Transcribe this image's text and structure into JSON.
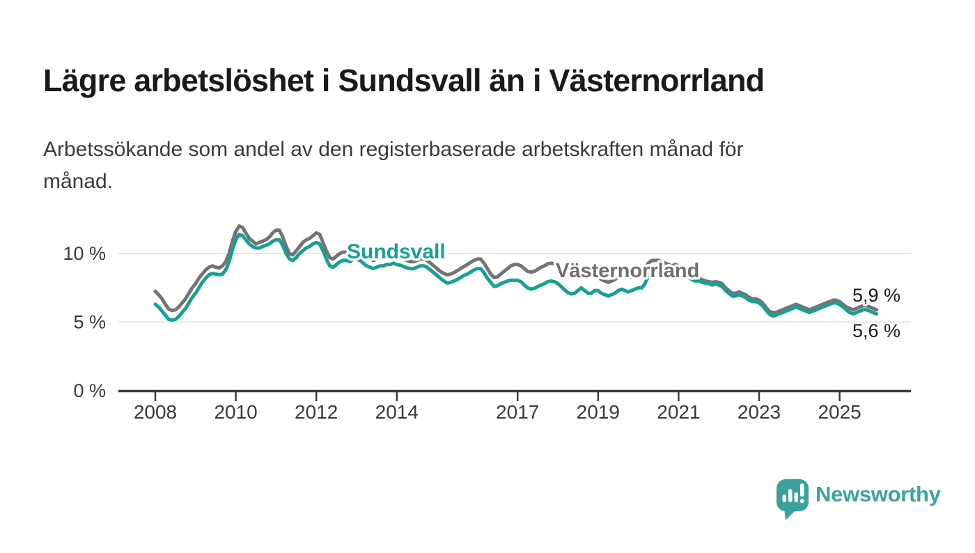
{
  "header": {
    "title": "Lägre arbetslöshet i Sundsvall än i Västernorrland",
    "subtitle": "Arbetssökande som andel av den registerbaserade arbetskraften månad för månad.",
    "subtitle_line1": "Arbetssökande som andel av den registerbaserade arbetskraften månad för",
    "subtitle_line2": "månad."
  },
  "footer": {
    "brand": "Newsworthy"
  },
  "colors": {
    "sundsvall_teal": "#18A091",
    "vasternorrland_gray": "#747474",
    "vasternorrland_label_gray": "#6F6F6F",
    "grid": "#E4E4E4",
    "axis": "#3C3C3C",
    "tick_text": "#3A3A3A",
    "title_text": "#1A1A18",
    "brand_teal": "#3AA49E",
    "logo_bubble_teal": "#3BA29B",
    "background": "#FFFFFF"
  },
  "chart_data": {
    "type": "line",
    "title": "Lägre arbetslöshet i Sundsvall än i Västernorrland",
    "subtitle": "Arbetssökande som andel av den registerbaserade arbetskraften månad för månad.",
    "x_unit": "month",
    "x_start": "2008-01",
    "x_end": "2025-12",
    "x_ticks": [
      2008,
      2010,
      2012,
      2014,
      2017,
      2019,
      2021,
      2023,
      2025
    ],
    "y_ticks": [
      {
        "value": 10,
        "label": "10 %"
      },
      {
        "value": 5,
        "label": "5 %"
      },
      {
        "value": 0,
        "label": "0 %"
      }
    ],
    "ylim": [
      0,
      13.2
    ],
    "grid": true,
    "legend": "inline-labels",
    "series": [
      {
        "id": "vasternorrland",
        "name": "Västernorrland",
        "color": "#747474",
        "end_label": "5,9 %",
        "end_value": 5.9,
        "values": [
          7.25,
          7.0,
          6.7,
          6.3,
          5.95,
          5.85,
          5.9,
          6.1,
          6.4,
          6.7,
          7.1,
          7.5,
          7.8,
          8.2,
          8.5,
          8.8,
          9.0,
          9.1,
          9.0,
          8.95,
          9.1,
          9.4,
          10.0,
          10.9,
          11.6,
          12.0,
          11.9,
          11.5,
          11.1,
          10.9,
          10.7,
          10.8,
          10.9,
          11.0,
          11.2,
          11.5,
          11.7,
          11.7,
          11.2,
          10.5,
          10.0,
          9.9,
          10.2,
          10.5,
          10.8,
          11.0,
          11.1,
          11.3,
          11.5,
          11.4,
          10.8,
          10.2,
          9.7,
          9.6,
          9.8,
          10.0,
          10.1,
          10.1,
          10.0,
          10.2,
          10.1,
          10.0,
          9.8,
          9.7,
          9.6,
          9.5,
          9.6,
          9.7,
          9.7,
          9.8,
          9.8,
          9.8,
          9.8,
          9.7,
          9.6,
          9.5,
          9.4,
          9.4,
          9.5,
          9.6,
          9.6,
          9.5,
          9.3,
          9.1,
          8.9,
          8.7,
          8.55,
          8.45,
          8.5,
          8.6,
          8.75,
          8.9,
          9.05,
          9.2,
          9.35,
          9.5,
          9.6,
          9.6,
          9.3,
          8.9,
          8.5,
          8.25,
          8.3,
          8.5,
          8.7,
          8.9,
          9.1,
          9.2,
          9.2,
          9.1,
          8.9,
          8.7,
          8.65,
          8.7,
          8.85,
          9.0,
          9.1,
          9.25,
          9.3,
          9.25,
          9.1,
          8.9,
          8.7,
          8.5,
          8.4,
          8.4,
          8.6,
          8.7,
          8.5,
          8.4,
          8.4,
          8.5,
          8.3,
          8.1,
          8.0,
          7.9,
          8.0,
          8.1,
          8.3,
          8.4,
          8.3,
          8.25,
          8.3,
          8.5,
          8.6,
          8.6,
          8.9,
          9.3,
          9.5,
          9.5,
          9.5,
          9.4,
          9.3,
          9.2,
          9.1,
          9.2,
          9.1,
          9.0,
          8.8,
          8.6,
          8.4,
          8.3,
          8.2,
          8.1,
          8.0,
          7.95,
          7.9,
          7.95,
          7.9,
          7.8,
          7.5,
          7.3,
          7.1,
          7.1,
          7.2,
          7.1,
          7.0,
          6.8,
          6.7,
          6.7,
          6.6,
          6.4,
          6.1,
          5.8,
          5.7,
          5.7,
          5.8,
          5.9,
          6.0,
          6.1,
          6.2,
          6.3,
          6.2,
          6.1,
          6.0,
          5.9,
          6.0,
          6.1,
          6.2,
          6.3,
          6.4,
          6.5,
          6.6,
          6.6,
          6.5,
          6.3,
          6.1,
          6.0,
          5.9,
          6.0,
          6.1,
          6.2,
          6.2,
          6.1,
          6.0,
          5.9
        ]
      },
      {
        "id": "sundsvall",
        "name": "Sundsvall",
        "color": "#18A091",
        "end_label": "5,6 %",
        "end_value": 5.6,
        "values": [
          6.3,
          6.1,
          5.8,
          5.5,
          5.2,
          5.15,
          5.2,
          5.4,
          5.7,
          6.0,
          6.4,
          6.8,
          7.1,
          7.5,
          7.9,
          8.2,
          8.45,
          8.55,
          8.5,
          8.45,
          8.5,
          8.8,
          9.4,
          10.3,
          11.0,
          11.4,
          11.3,
          11.0,
          10.7,
          10.5,
          10.4,
          10.4,
          10.5,
          10.6,
          10.7,
          10.9,
          11.0,
          11.0,
          10.6,
          10.0,
          9.6,
          9.5,
          9.7,
          10.0,
          10.2,
          10.4,
          10.5,
          10.7,
          10.8,
          10.7,
          10.2,
          9.6,
          9.1,
          9.0,
          9.2,
          9.4,
          9.5,
          9.5,
          9.4,
          9.6,
          9.6,
          9.5,
          9.3,
          9.1,
          9.0,
          8.9,
          9.0,
          9.1,
          9.1,
          9.2,
          9.2,
          9.3,
          9.2,
          9.15,
          9.05,
          8.95,
          8.9,
          8.9,
          9.0,
          9.1,
          9.1,
          9.0,
          8.8,
          8.6,
          8.4,
          8.2,
          8.0,
          7.85,
          7.9,
          8.0,
          8.1,
          8.25,
          8.4,
          8.5,
          8.65,
          8.8,
          8.9,
          8.9,
          8.6,
          8.2,
          7.9,
          7.6,
          7.65,
          7.8,
          7.9,
          8.0,
          8.05,
          8.05,
          8.05,
          7.95,
          7.7,
          7.5,
          7.4,
          7.45,
          7.6,
          7.7,
          7.8,
          7.95,
          8.0,
          7.95,
          7.8,
          7.6,
          7.35,
          7.15,
          7.05,
          7.1,
          7.3,
          7.5,
          7.3,
          7.1,
          7.1,
          7.3,
          7.3,
          7.1,
          7.0,
          6.9,
          7.0,
          7.1,
          7.3,
          7.4,
          7.3,
          7.2,
          7.3,
          7.4,
          7.5,
          7.5,
          7.8,
          8.4,
          8.7,
          8.8,
          8.9,
          8.8,
          8.7,
          8.5,
          8.4,
          8.5,
          8.6,
          8.5,
          8.4,
          8.25,
          8.1,
          8.0,
          8.0,
          7.9,
          7.85,
          7.8,
          7.7,
          7.8,
          7.7,
          7.6,
          7.3,
          7.1,
          6.9,
          6.9,
          7.0,
          6.9,
          6.8,
          6.6,
          6.5,
          6.5,
          6.4,
          6.2,
          5.9,
          5.6,
          5.45,
          5.5,
          5.6,
          5.7,
          5.8,
          5.9,
          6.0,
          6.1,
          6.0,
          5.9,
          5.8,
          5.7,
          5.8,
          5.9,
          6.0,
          6.1,
          6.2,
          6.3,
          6.4,
          6.4,
          6.3,
          6.1,
          5.9,
          5.7,
          5.6,
          5.7,
          5.8,
          5.9,
          5.9,
          5.8,
          5.7,
          5.6
        ]
      }
    ]
  }
}
